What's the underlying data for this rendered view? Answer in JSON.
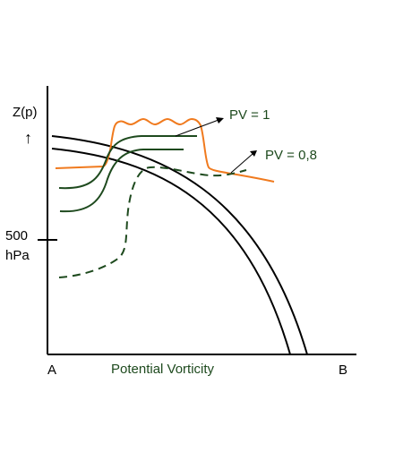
{
  "axes": {
    "y_label": "Z(p)",
    "y_arrow": "↑",
    "tick_value": "500",
    "tick_unit": "hPa",
    "x_left_label": "A",
    "x_right_label": "B",
    "x_label": "Potential Vorticity"
  },
  "annotations": {
    "pv1": "PV = 1",
    "pv08": "PV = 0,8"
  },
  "colors": {
    "axis": "#000000",
    "tropopause": "#000000",
    "pv1_curve": "#1e4a1e",
    "pv08_curve": "#1e4a1e",
    "orange_curve": "#f07a1e",
    "label_green": "#1e4a1e"
  }
}
